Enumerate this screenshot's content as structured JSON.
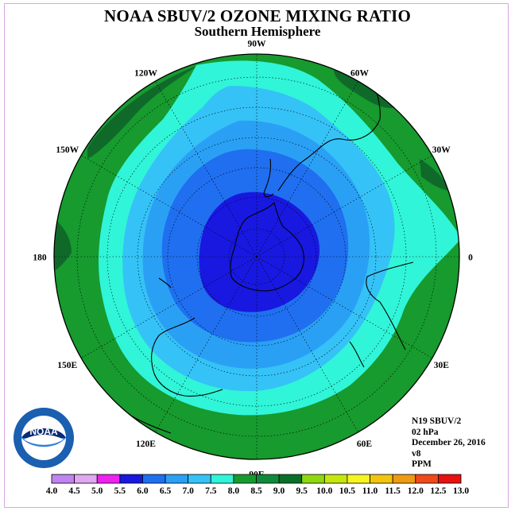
{
  "header": {
    "title": "NOAA SBUV/2 OZONE MIXING RATIO",
    "subtitle": "Southern Hemisphere"
  },
  "info": {
    "instrument": "N19 SBUV/2",
    "level": "02 hPa",
    "date": "December 26, 2016",
    "version": "v8",
    "units": "PPM"
  },
  "longitude_labels": [
    "90W",
    "60W",
    "30W",
    "0",
    "30E",
    "60E",
    "90E",
    "120E",
    "150E",
    "180",
    "150W",
    "120W"
  ],
  "colorbar": {
    "ticks": [
      "4.0",
      "4.5",
      "5.0",
      "5.5",
      "6.0",
      "6.5",
      "7.0",
      "7.5",
      "8.0",
      "8.5",
      "9.0",
      "9.5",
      "10.0",
      "10.5",
      "11.0",
      "11.5",
      "12.0",
      "12.5",
      "13.0"
    ],
    "colors": [
      "#c083f0",
      "#e0a8f0",
      "#f020f0",
      "#1818e0",
      "#1f6ff0",
      "#2aa0f5",
      "#35c2f7",
      "#30f5d8",
      "#179a2e",
      "#0f8a3a",
      "#077028",
      "#8ed810",
      "#c6e60c",
      "#f7f520",
      "#f2c40e",
      "#f09a12",
      "#f04a18",
      "#e81010",
      "#8a5a3c"
    ]
  },
  "map_colors": {
    "le_8.0": "#30f5d8",
    "le_7.5": "#35c2f7",
    "le_7.0": "#2aa0f5",
    "le_6.5": "#1f6ff0",
    "le_6.0": "#1818e0",
    "band_8.0_8.5": "#179a2e",
    "band_8.5_9.0": "#0f6a2a"
  },
  "logo": {
    "text": "NOAA",
    "ring_text": "NATIONAL OCEANIC AND ATMOSPHERIC ADMINISTRATION U.S. DEPARTMENT OF COMMERCE"
  }
}
